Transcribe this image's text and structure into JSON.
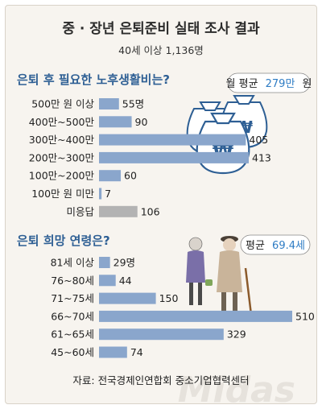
{
  "title": "중 · 장년 은퇴준비 실태 조사 결과",
  "subtitle": "40세 이상 1,136명",
  "source": "자료: 전국경제인연합회 중소기업협력센터",
  "watermark": "Midas",
  "colors": {
    "bar": "#8aa6cc",
    "bar_muted": "#b3b3b3",
    "heading": "#2e5f94",
    "accent": "#2e7cc4",
    "panel": "#f7f4ef"
  },
  "chart_data": [
    {
      "type": "bar",
      "orientation": "horizontal",
      "title": "은퇴 후 필요한 노후생활비는?",
      "categories": [
        "500만 원 이상",
        "400만~500만",
        "300만~400만",
        "200만~300만",
        "100만~200만",
        "100만 원 미만",
        "미응답"
      ],
      "values": [
        55,
        90,
        405,
        413,
        60,
        7,
        106
      ],
      "value_labels": [
        "55명",
        "90",
        "405",
        "413",
        "60",
        "7",
        "106"
      ],
      "muted_categories": [
        "미응답"
      ],
      "annotation": {
        "label": "월 평균",
        "value": "279만",
        "unit": "원"
      },
      "xlim": [
        0,
        413
      ],
      "grid": false,
      "legend": "none"
    },
    {
      "type": "bar",
      "orientation": "horizontal",
      "title": "은퇴 희망 연령은?",
      "categories": [
        "81세 이상",
        "76~80세",
        "71~75세",
        "66~70세",
        "61~65세",
        "45~60세"
      ],
      "values": [
        29,
        44,
        150,
        510,
        329,
        74
      ],
      "value_labels": [
        "29명",
        "44",
        "150",
        "510",
        "329",
        "74"
      ],
      "annotation": {
        "label": "평균",
        "value": "69.4세"
      },
      "xlim": [
        0,
        510
      ],
      "grid": false,
      "legend": "none"
    }
  ]
}
